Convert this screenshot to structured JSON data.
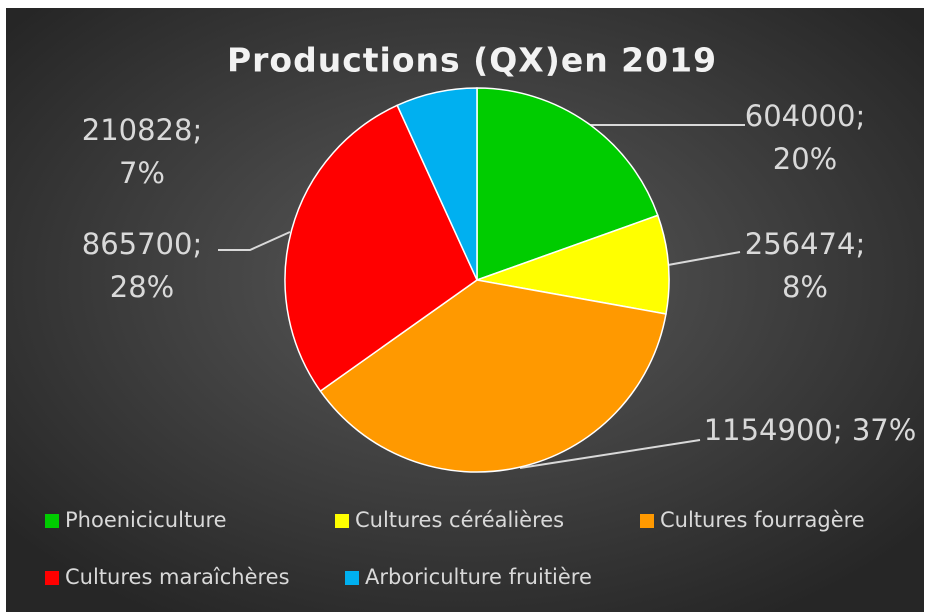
{
  "chart_data": {
    "type": "pie",
    "title": "Productions (QX)en 2019",
    "categories": [
      "Phoeniciculture",
      "Cultures céréalières",
      "Cultures fourragère",
      "Cultures maraîchères",
      "Arboriculture fruitière"
    ],
    "values": [
      604000,
      256474,
      1154900,
      865700,
      210828
    ],
    "value_labels": [
      [
        "604000;",
        "20%"
      ],
      [
        "256474;",
        "8%"
      ],
      [
        "1154900; 37%"
      ],
      [
        "865700;",
        "28%"
      ],
      [
        "210828;",
        "7%"
      ]
    ],
    "colors": [
      "#00cc00",
      "#ffff00",
      "#ff9900",
      "#ff0000",
      "#00b0f0"
    ],
    "legend": "bottom"
  }
}
